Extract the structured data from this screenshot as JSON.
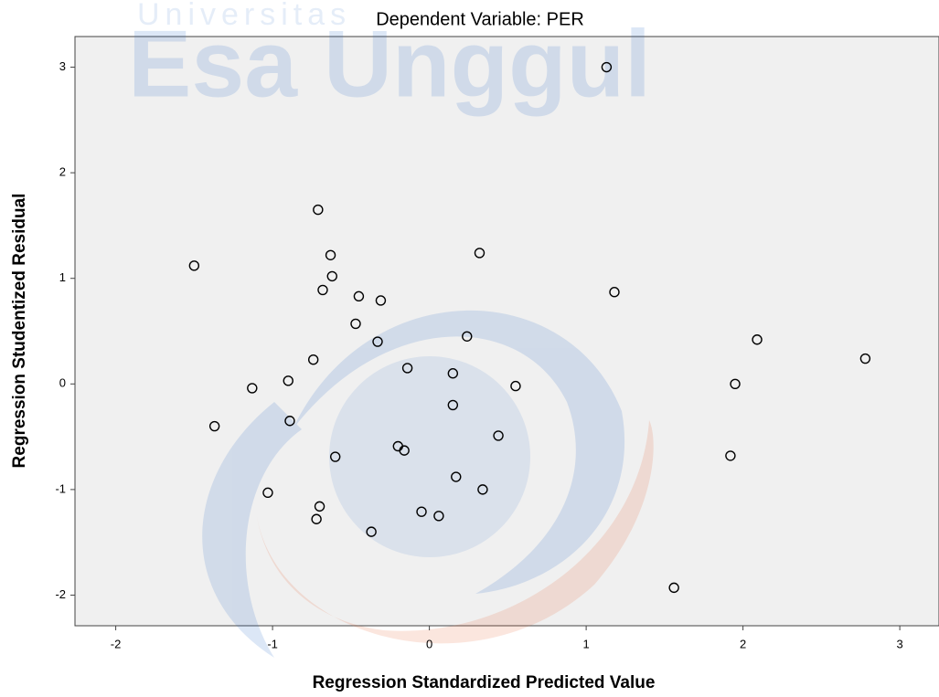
{
  "watermark": {
    "line1": "Universitas",
    "line2": "Esa Unggul"
  },
  "chart_data": {
    "type": "scatter",
    "title": "Dependent Variable: PER",
    "x_label": "Regression Standardized Predicted Value",
    "y_label": "Regression Studentized Residual",
    "marker_color": "#000000",
    "xlim": [
      -2.26,
      3.25
    ],
    "ylim": [
      -2.29,
      3.29
    ],
    "xticks": [
      -2,
      -1,
      0,
      1,
      2,
      3
    ],
    "yticks": [
      -2,
      -1,
      0,
      1,
      2,
      3
    ],
    "x": [
      1.13,
      -0.71,
      -1.5,
      -0.63,
      0.32,
      -0.62,
      -0.68,
      -0.45,
      -0.31,
      1.18,
      -0.47,
      -0.33,
      0.24,
      -0.74,
      -0.14,
      0.15,
      -0.9,
      -1.13,
      0.55,
      2.09,
      1.95,
      2.78,
      0.15,
      -1.37,
      -0.89,
      0.44,
      -0.2,
      -0.16,
      -0.6,
      1.92,
      0.17,
      0.34,
      -1.03,
      -0.7,
      -0.72,
      -0.05,
      0.06,
      -0.37,
      1.56
    ],
    "y": [
      3.0,
      1.65,
      1.12,
      1.22,
      1.24,
      1.02,
      0.89,
      0.83,
      0.79,
      0.87,
      0.57,
      0.4,
      0.45,
      0.23,
      0.15,
      0.1,
      0.03,
      -0.04,
      -0.02,
      0.42,
      0.0,
      0.24,
      -0.2,
      -0.4,
      -0.35,
      -0.49,
      -0.59,
      -0.63,
      -0.69,
      -0.68,
      -0.88,
      -1.0,
      -1.03,
      -1.16,
      -1.28,
      -1.21,
      -1.25,
      -1.4,
      -1.93
    ]
  }
}
